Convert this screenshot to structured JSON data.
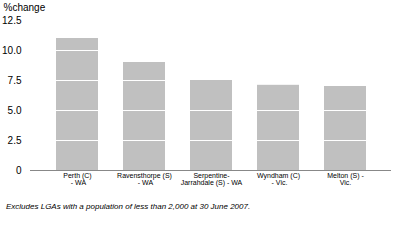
{
  "chart_data": {
    "type": "bar",
    "categories": [
      "Perth (C)\n - WA",
      "Ravensthorpe (S)\n - WA",
      "Serpentine-\nJarrahdale (S) - WA",
      "Wyndham (C)\n - Vic.",
      "Melton (S) -\nVic."
    ],
    "values": [
      11.0,
      9.0,
      7.5,
      7.1,
      7.0
    ],
    "color": "#c0c0c0",
    "ylabel": "%change",
    "ylim": [
      0,
      12.5
    ],
    "yticks": [
      0,
      2.5,
      {
        "value": 5.0,
        "label": "5.0"
      },
      7.5,
      {
        "value": 10.0,
        "label": "10.0"
      },
      12.5
    ],
    "segment_lines": [
      2.5,
      5.0,
      7.5,
      10.0
    ],
    "footnote": "Excludes LGAs with a population of less than 2,000 at 30 June 2007.",
    "grid": false
  }
}
